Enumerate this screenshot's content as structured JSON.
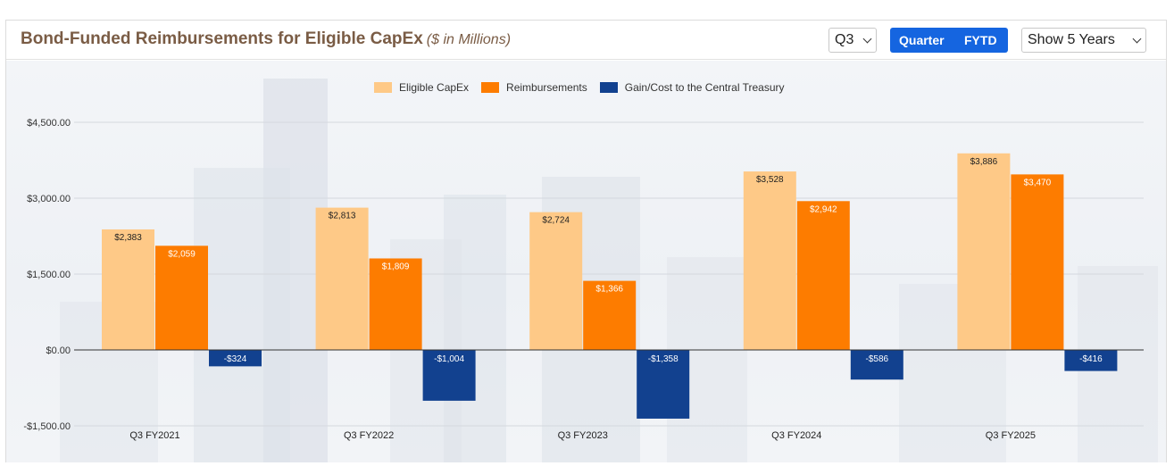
{
  "header": {
    "title": "Bond-Funded Reimbursements for Eligible CapEx",
    "subtitle": "($ in Millions)",
    "quarter_select": "Q3",
    "toggle": {
      "quarter_label": "Quarter",
      "fytd_label": "FYTD"
    },
    "range_select": "Show 5 Years"
  },
  "colors": {
    "eligible": "#fec987",
    "reimbursements": "#fd7c00",
    "gain": "#12418f",
    "title": "#7a5c45",
    "toggle": "#1565e0"
  },
  "chart_data": {
    "type": "bar",
    "categories": [
      "Q3 FY2021",
      "Q3 FY2022",
      "Q3 FY2023",
      "Q3 FY2024",
      "Q3 FY2025"
    ],
    "series": [
      {
        "name": "Eligible CapEx",
        "values": [
          2383,
          2813,
          2724,
          3528,
          3886
        ],
        "labels": [
          "$2,383",
          "$2,813",
          "$2,724",
          "$3,528",
          "$3,886"
        ]
      },
      {
        "name": "Reimbursements",
        "values": [
          2059,
          1809,
          1366,
          2942,
          3470
        ],
        "labels": [
          "$2,059",
          "$1,809",
          "$1,366",
          "$2,942",
          "$3,470"
        ]
      },
      {
        "name": "Gain/Cost to the Central Treasury",
        "values": [
          -324,
          -1004,
          -1358,
          -586,
          -416
        ],
        "labels": [
          "-$324",
          "-$1,004",
          "-$1,358",
          "-$586",
          "-$416"
        ]
      }
    ],
    "yticks": [
      4500,
      3000,
      1500,
      0,
      -1500
    ],
    "ytick_labels": [
      "$4,500.00",
      "$3,000.00",
      "$1,500.00",
      "$0.00",
      "-$1,500.00"
    ],
    "ylim": [
      -1500,
      4500
    ],
    "legend_position": "top-center",
    "grid": true
  }
}
